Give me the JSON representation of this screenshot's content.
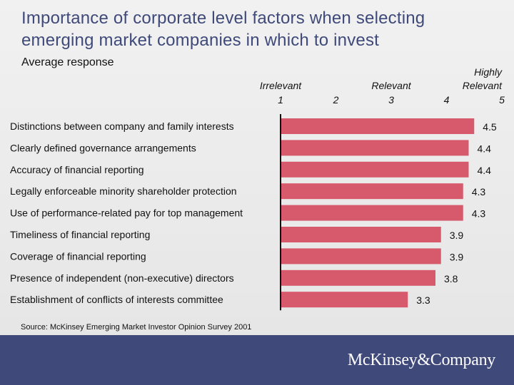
{
  "slide": {
    "title_line1": "Importance of corporate level factors when selecting",
    "title_line2": "emerging market companies in which to invest",
    "subtitle": "Average response",
    "source": "Source: McKinsey Emerging Market Investor Opinion Survey 2001",
    "logo": "McKinsey&Company"
  },
  "colors": {
    "bar": "#d65a6b",
    "axis": "#111111",
    "footer": "#3f497a",
    "title": "#3f4a7a"
  },
  "chart_data": {
    "type": "bar",
    "orientation": "horizontal",
    "title": "Importance of corporate level factors when selecting emerging market companies in which to invest",
    "xlabel": "Average response",
    "xlim": [
      1,
      5
    ],
    "ticks": [
      {
        "value": 1,
        "number": "1",
        "words": [
          "Irrelevant"
        ]
      },
      {
        "value": 2,
        "number": "2",
        "words": []
      },
      {
        "value": 3,
        "number": "3",
        "words": [
          "Relevant"
        ]
      },
      {
        "value": 4,
        "number": "4",
        "words": []
      },
      {
        "value": 5,
        "number": "5",
        "words": [
          "Highly",
          "Relevant"
        ]
      }
    ],
    "categories": [
      "Distinctions between company and family interests",
      "Clearly defined governance arrangements",
      "Accuracy of financial reporting",
      "Legally enforceable minority shareholder protection",
      "Use of performance-related pay for top management",
      "Timeliness of financial reporting",
      "Coverage of financial reporting",
      "Presence of independent (non-executive) directors",
      "Establishment of conflicts of interests committee"
    ],
    "values": [
      4.5,
      4.4,
      4.4,
      4.3,
      4.3,
      3.9,
      3.9,
      3.8,
      3.3
    ],
    "value_labels": [
      "4.5",
      "4.4",
      "4.4",
      "4.3",
      "4.3",
      "3.9",
      "3.9",
      "3.8",
      "3.3"
    ]
  }
}
